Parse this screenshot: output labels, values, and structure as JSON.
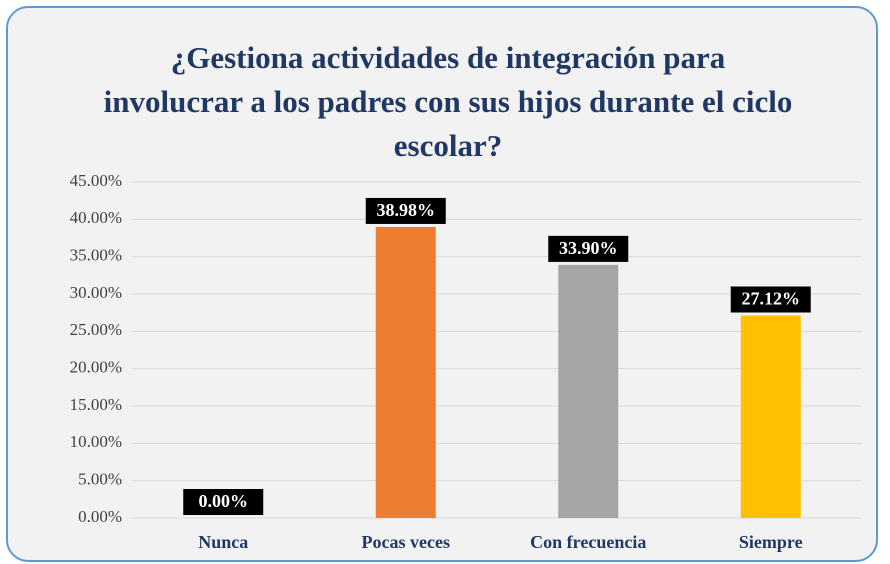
{
  "chart_data": {
    "type": "bar",
    "title": "¿Gestiona actividades de integración para involucrar a los padres con sus hijos durante el ciclo escolar?",
    "categories": [
      "Nunca",
      "Pocas veces",
      "Con frecuencia",
      "Siempre"
    ],
    "values": [
      0,
      38.98,
      33.9,
      27.12
    ],
    "value_labels": [
      "0.00%",
      "38.98%",
      "33.90%",
      "27.12%"
    ],
    "colors": [
      "#4472c4",
      "#ed7d31",
      "#a5a5a5",
      "#ffc000"
    ],
    "ylim": [
      0,
      45
    ],
    "yticks": [
      {
        "value": 0,
        "label": "0.00%"
      },
      {
        "value": 5,
        "label": "5.00%"
      },
      {
        "value": 10,
        "label": "10.00%"
      },
      {
        "value": 15,
        "label": "15.00%"
      },
      {
        "value": 20,
        "label": "20.00%"
      },
      {
        "value": 25,
        "label": "25.00%"
      },
      {
        "value": 30,
        "label": "30.00%"
      },
      {
        "value": 35,
        "label": "35.00%"
      },
      {
        "value": 40,
        "label": "40.00%"
      },
      {
        "value": 45,
        "label": "45.00%"
      }
    ],
    "grid": true
  }
}
